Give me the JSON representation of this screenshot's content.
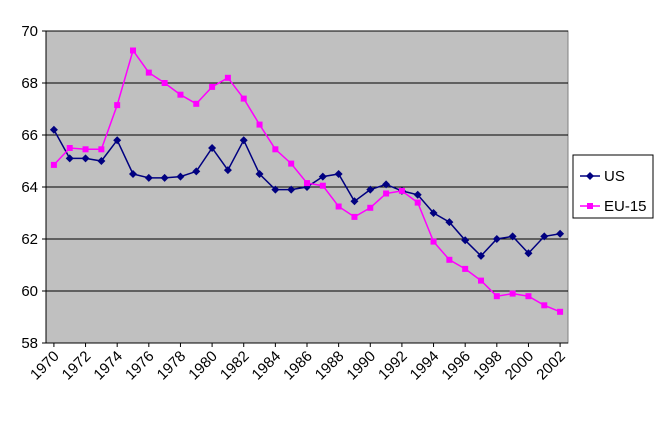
{
  "chart_data": {
    "type": "line",
    "x": [
      1970,
      1971,
      1972,
      1973,
      1974,
      1975,
      1976,
      1977,
      1978,
      1979,
      1980,
      1981,
      1982,
      1983,
      1984,
      1985,
      1986,
      1987,
      1988,
      1989,
      1990,
      1991,
      1992,
      1993,
      1994,
      1995,
      1996,
      1997,
      1998,
      1999,
      2000,
      2001,
      2002
    ],
    "series": [
      {
        "name": "US",
        "color": "#000080",
        "marker": "diamond",
        "values": [
          66.2,
          65.1,
          65.1,
          65.0,
          65.8,
          64.5,
          64.35,
          64.35,
          64.4,
          64.6,
          65.5,
          64.65,
          65.8,
          64.5,
          63.9,
          63.9,
          64.0,
          64.4,
          64.5,
          63.45,
          63.9,
          64.1,
          63.85,
          63.7,
          63.0,
          62.65,
          61.95,
          61.35,
          62.0,
          62.1,
          61.45,
          62.1,
          62.2
        ]
      },
      {
        "name": "EU-15",
        "color": "#ff00ff",
        "marker": "square",
        "values": [
          64.85,
          65.5,
          65.45,
          65.45,
          67.15,
          69.25,
          68.4,
          68.0,
          67.55,
          67.2,
          67.85,
          68.2,
          67.4,
          66.4,
          65.45,
          64.9,
          64.15,
          64.05,
          63.25,
          62.85,
          63.2,
          63.75,
          63.85,
          63.4,
          61.9,
          61.2,
          60.85,
          60.4,
          59.8,
          59.9,
          59.8,
          59.45,
          59.2
        ]
      }
    ],
    "xlim": [
      1969.5,
      2002.5
    ],
    "xticks": [
      1970,
      1972,
      1974,
      1976,
      1978,
      1980,
      1982,
      1984,
      1986,
      1988,
      1990,
      1992,
      1994,
      1996,
      1998,
      2000,
      2002
    ],
    "ylim": [
      58,
      70
    ],
    "yticks": [
      58,
      60,
      62,
      64,
      66,
      68,
      70
    ],
    "grid": true,
    "legend": "right"
  }
}
